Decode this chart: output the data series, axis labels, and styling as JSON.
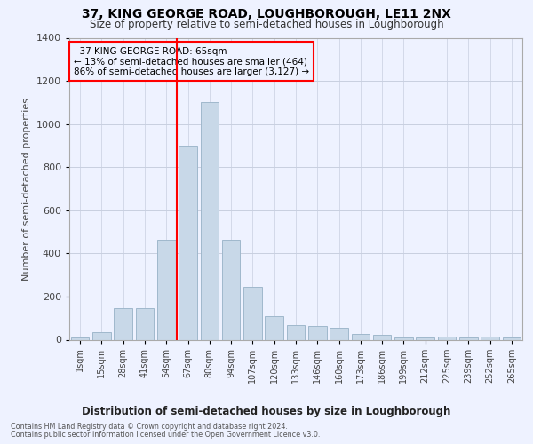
{
  "title": "37, KING GEORGE ROAD, LOUGHBOROUGH, LE11 2NX",
  "subtitle": "Size of property relative to semi-detached houses in Loughborough",
  "xlabel": "Distribution of semi-detached houses by size in Loughborough",
  "ylabel": "Number of semi-detached properties",
  "categories": [
    "1sqm",
    "15sqm",
    "28sqm",
    "41sqm",
    "54sqm",
    "67sqm",
    "80sqm",
    "94sqm",
    "107sqm",
    "120sqm",
    "133sqm",
    "146sqm",
    "160sqm",
    "173sqm",
    "186sqm",
    "199sqm",
    "212sqm",
    "225sqm",
    "239sqm",
    "252sqm",
    "265sqm"
  ],
  "values": [
    10,
    35,
    145,
    145,
    465,
    900,
    1100,
    465,
    245,
    110,
    70,
    65,
    55,
    27,
    22,
    10,
    10,
    15,
    10,
    15,
    10
  ],
  "bar_color": "#c8d8e8",
  "bar_edge_color": "#a0b8cc",
  "vline_x_index": 5,
  "vline_color": "red",
  "property_name": "37 KING GEORGE ROAD: 65sqm",
  "pct_smaller": 13,
  "count_smaller": 464,
  "pct_larger": 86,
  "count_larger": 3127,
  "annotation_box_color": "red",
  "bg_color": "#eef2ff",
  "grid_color": "#c8cfe0",
  "ylim": [
    0,
    1400
  ],
  "yticks": [
    0,
    200,
    400,
    600,
    800,
    1000,
    1200,
    1400
  ],
  "footer1": "Contains HM Land Registry data © Crown copyright and database right 2024.",
  "footer2": "Contains public sector information licensed under the Open Government Licence v3.0."
}
